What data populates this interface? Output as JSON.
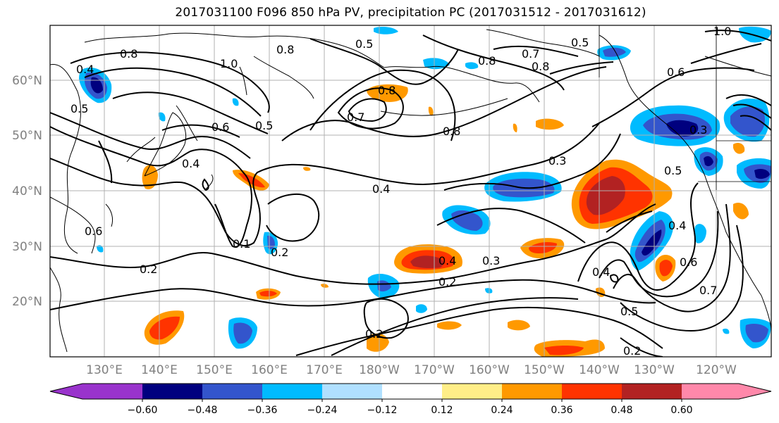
{
  "title": "2017031100 F096 850 hPa PV, precipitation PC (2017031512 - 2017031612)",
  "lat_labels": [
    "60°N",
    "50°N",
    "40°N",
    "30°N",
    "20°N"
  ],
  "lon_labels": [
    "130°E",
    "140°E",
    "150°E",
    "160°E",
    "170°E",
    "180°W",
    "170°W",
    "160°W",
    "150°W",
    "140°W",
    "130°W",
    "120°W"
  ],
  "contour_labels": [
    "0.8",
    "1.0",
    "0.8",
    "0.4",
    "0.5",
    "0.8",
    "0.7",
    "0.6",
    "0.5",
    "0.4",
    "0.3",
    "0.2",
    "0.3",
    "0.4",
    "0.2",
    "0.5",
    "0.6",
    "0.7",
    "0.4",
    "0.2",
    "0.3",
    "0.5",
    "1.0",
    "0.8",
    "0.7",
    "0.6",
    "0.1",
    "0.2",
    "0.5",
    "0.8",
    "0.5",
    "0.6",
    "0.4",
    "0.4",
    "0.2",
    "0.8"
  ],
  "colorbar": {
    "tick_labels": [
      "−0.60",
      "−0.48",
      "−0.36",
      "−0.24",
      "−0.12",
      "0.12",
      "0.24",
      "0.36",
      "0.48",
      "0.60"
    ],
    "colors": [
      "#9933cc",
      "#00007f",
      "#3355cc",
      "#00bbff",
      "#b0e0ff",
      "#ffffff",
      "#ffee88",
      "#ff9900",
      "#ff3300",
      "#b22222",
      "#ff88aa"
    ]
  }
}
